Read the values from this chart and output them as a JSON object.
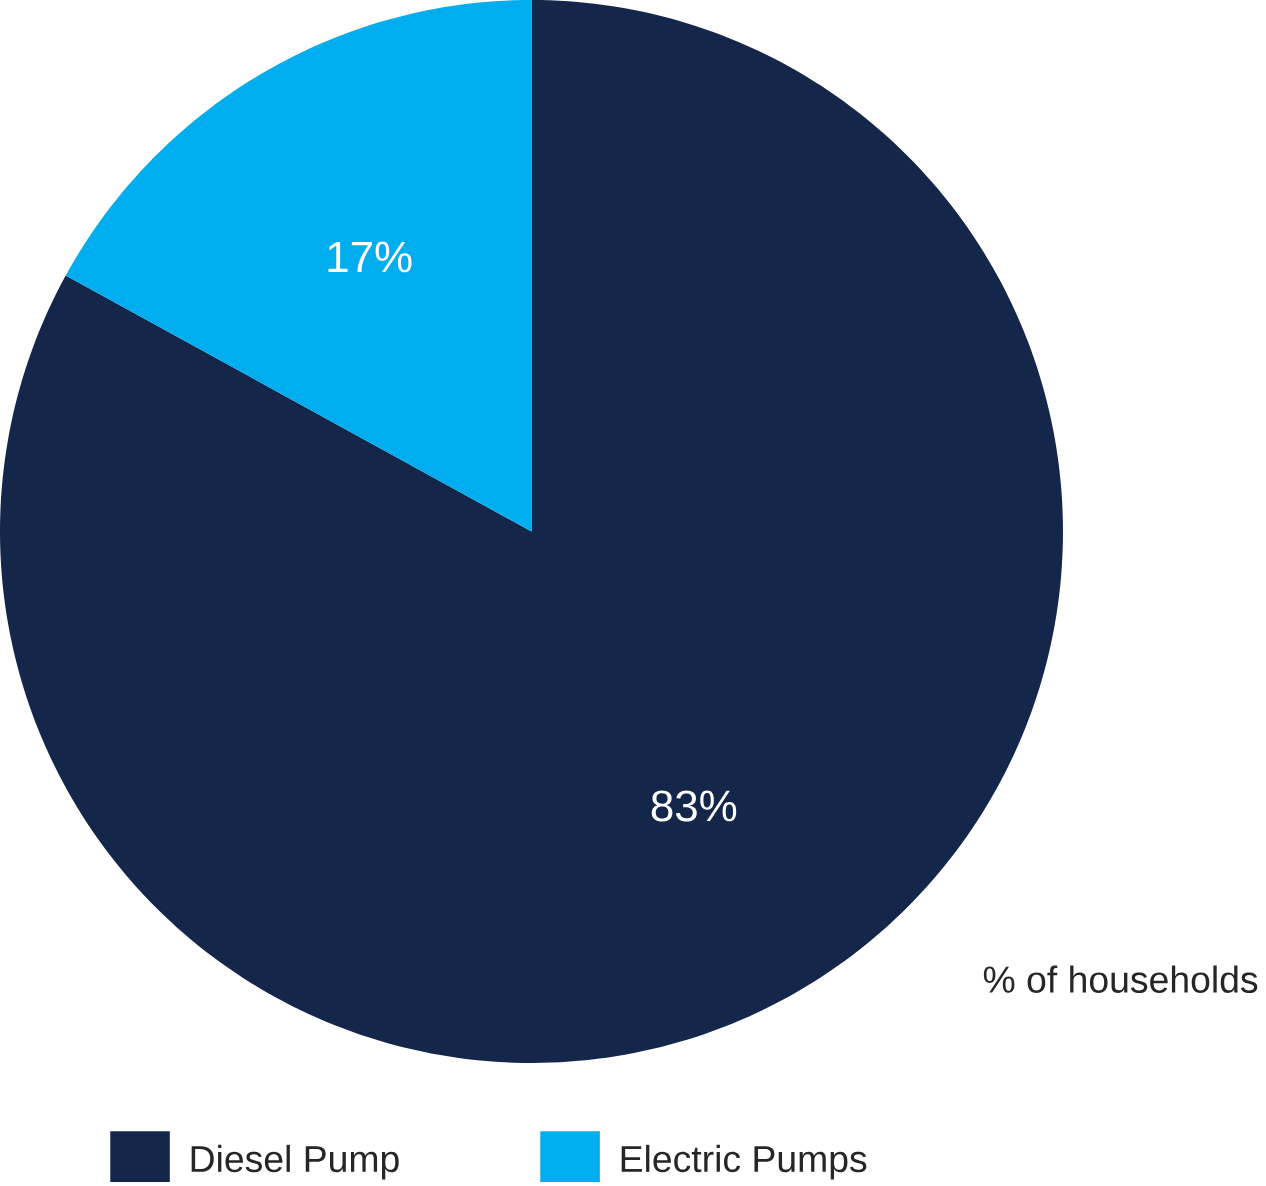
{
  "chart_data": {
    "type": "pie",
    "categories": [
      "Diesel Pump",
      "Electric Pumps"
    ],
    "values": [
      83,
      17
    ],
    "colors": [
      "#14264a",
      "#00aeef"
    ],
    "value_labels": [
      "83%",
      "17%"
    ],
    "legend": "bottom left",
    "annotations": [
      "% of households"
    ]
  }
}
